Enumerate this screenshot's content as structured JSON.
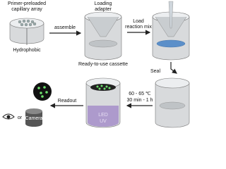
{
  "labels": {
    "primer_array": [
      "Primer-preloaded",
      "capillary array"
    ],
    "hydrophobic": "Hydrophobic",
    "assemble": "assemble",
    "loading_adapter": [
      "Loading",
      "adapter"
    ],
    "load_mix": [
      "Load",
      "reaction mix"
    ],
    "cassette": "Ready-to-use cassette",
    "seal": "Seal",
    "temperature": "60 - 65 ℃",
    "time": "30 min - 1 h",
    "readout": "Readout",
    "or": "or",
    "camera": "Camera",
    "led": "LED",
    "uv": "UV"
  }
}
